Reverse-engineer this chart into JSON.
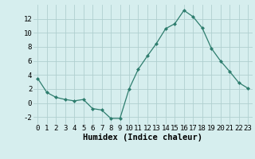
{
  "x": [
    0,
    1,
    2,
    3,
    4,
    5,
    6,
    7,
    8,
    9,
    10,
    11,
    12,
    13,
    14,
    15,
    16,
    17,
    18,
    19,
    20,
    21,
    22,
    23
  ],
  "y": [
    3.5,
    1.5,
    0.8,
    0.5,
    0.3,
    0.5,
    -0.8,
    -1.0,
    -2.2,
    -2.2,
    2.0,
    4.8,
    6.7,
    8.5,
    10.6,
    11.3,
    13.2,
    12.3,
    10.7,
    7.8,
    6.0,
    4.5,
    2.9,
    2.1
  ],
  "line_color": "#2e7d6e",
  "marker": "D",
  "marker_size": 2.0,
  "bg_color": "#d6eeee",
  "grid_color": "#b0cfcf",
  "xlabel": "Humidex (Indice chaleur)",
  "xlim": [
    -0.5,
    23.5
  ],
  "ylim": [
    -3,
    14
  ],
  "xticks": [
    0,
    1,
    2,
    3,
    4,
    5,
    6,
    7,
    8,
    9,
    10,
    11,
    12,
    13,
    14,
    15,
    16,
    17,
    18,
    19,
    20,
    21,
    22,
    23
  ],
  "yticks": [
    -2,
    0,
    2,
    4,
    6,
    8,
    10,
    12
  ],
  "tick_fontsize": 6.5,
  "xlabel_fontsize": 7.5
}
